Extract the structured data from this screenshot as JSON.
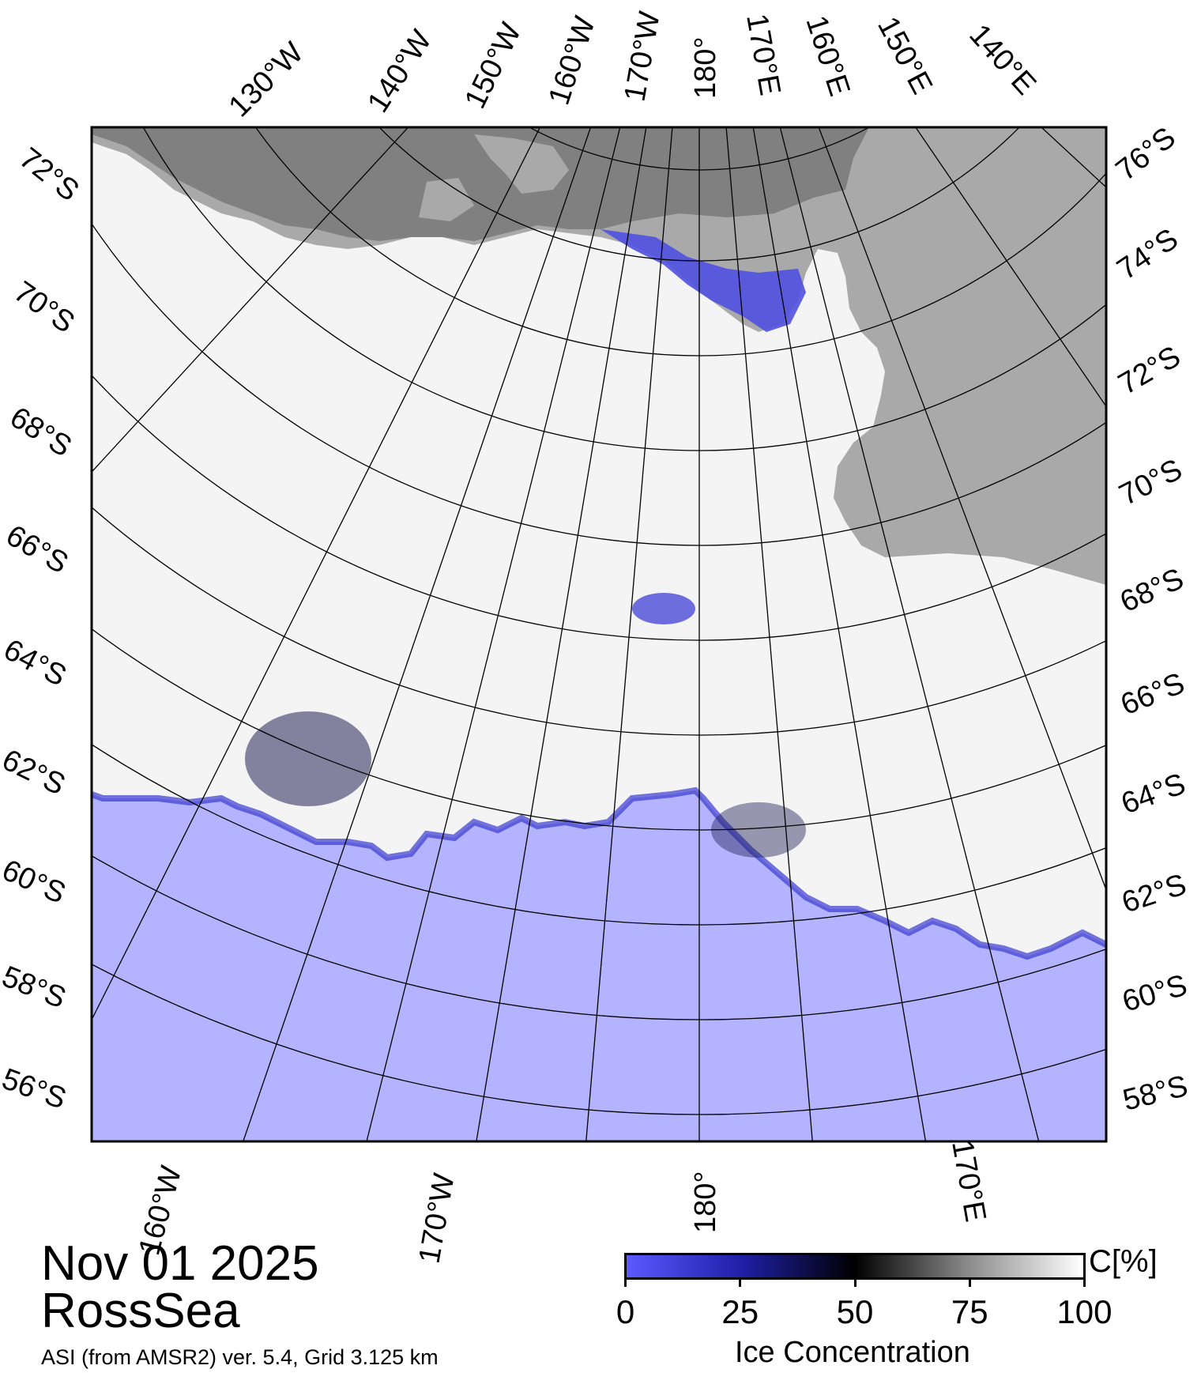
{
  "map": {
    "title_date": "Nov 01 2025",
    "region": "RossSea",
    "source": "ASI (from AMSR2) ver. 5.4,  Grid 3.125 km",
    "colors": {
      "ocean": "#b3b3ff",
      "land": "#a9a9a9",
      "ice_shelf": "#808080",
      "ice_full": "#ffffff",
      "frame": "#000000",
      "graticule": "#000000"
    },
    "top_lon_labels": [
      "130°W",
      "140°W",
      "150°W",
      "160°W",
      "170°W",
      "180°",
      "170°E",
      "160°E",
      "150°E",
      "140°E"
    ],
    "bottom_lon_labels": [
      "160°W",
      "170°W",
      "180°",
      "170°E"
    ],
    "left_lat_labels": [
      "72°S",
      "70°S",
      "68°S",
      "66°S",
      "64°S",
      "62°S",
      "60°S",
      "58°S",
      "56°S"
    ],
    "right_lat_labels": [
      "76°S",
      "74°S",
      "72°S",
      "70°S",
      "68°S",
      "66°S",
      "64°S",
      "62°S",
      "60°S",
      "58°S"
    ]
  },
  "legend": {
    "unit": "C[%]",
    "title": "Ice Concentration",
    "ticks": [
      "0",
      "25",
      "50",
      "75",
      "100"
    ],
    "tick_values": [
      0,
      25,
      50,
      75,
      100
    ],
    "colors": [
      "#5a5aff",
      "#1f1fa8",
      "#000000",
      "#8c8c8c",
      "#ffffff"
    ]
  }
}
